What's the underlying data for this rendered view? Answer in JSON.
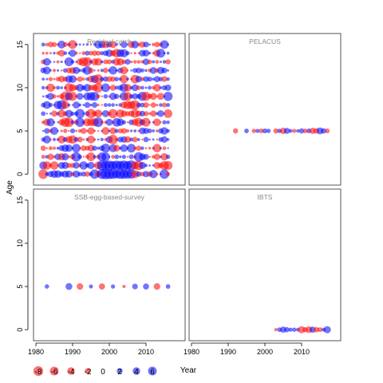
{
  "chart_data": {
    "type": "scatter",
    "subtype": "bubble-residuals",
    "xlabel": "Year",
    "ylabel": "Age",
    "xlim": [
      1980,
      2020
    ],
    "ylim": [
      -1,
      16
    ],
    "x_ticks": [
      "1980",
      "1990",
      "2000",
      "2010"
    ],
    "y_ticks": [
      "0",
      "5",
      "10",
      "15"
    ],
    "colors": {
      "positive": "#0000ff",
      "negative": "#ff0000",
      "panel_border": "#555555",
      "title": "#888888"
    },
    "panels": [
      {
        "title": "Residual catch",
        "x_range": [
          1982,
          2016
        ],
        "ages": [
          0,
          15
        ],
        "note": "dense grid of residuals, one bubble per year and age"
      },
      {
        "title": "PELACUS",
        "points": [
          {
            "x": 1992,
            "y": 5,
            "r": -1.2
          },
          {
            "x": 1995,
            "y": 5,
            "r": 0.8
          },
          {
            "x": 1997,
            "y": 5,
            "r": -0.6
          },
          {
            "x": 1998,
            "y": 5,
            "r": 0.5
          },
          {
            "x": 1999,
            "y": 5,
            "r": -0.9
          },
          {
            "x": 2000,
            "y": 5,
            "r": 1.0
          },
          {
            "x": 2001,
            "y": 5,
            "r": 0.6
          },
          {
            "x": 2003,
            "y": 5,
            "r": -1.1
          },
          {
            "x": 2004,
            "y": 5,
            "r": 0.7
          },
          {
            "x": 2005,
            "y": 5,
            "r": -2.2
          },
          {
            "x": 2006,
            "y": 5,
            "r": 1.8
          },
          {
            "x": 2007,
            "y": 5,
            "r": 0.4
          },
          {
            "x": 2008,
            "y": 5,
            "r": -0.5
          },
          {
            "x": 2009,
            "y": 5,
            "r": 0.3
          },
          {
            "x": 2010,
            "y": 5,
            "r": 1.2
          },
          {
            "x": 2011,
            "y": 5,
            "r": -0.8
          },
          {
            "x": 2012,
            "y": 5,
            "r": 0.9
          },
          {
            "x": 2013,
            "y": 5,
            "r": -2.0
          },
          {
            "x": 2014,
            "y": 5,
            "r": -1.5
          },
          {
            "x": 2015,
            "y": 5,
            "r": 2.6
          },
          {
            "x": 2016,
            "y": 5,
            "r": 1.4
          },
          {
            "x": 2017,
            "y": 5,
            "r": -0.9
          }
        ]
      },
      {
        "title": "SSB-egg-based-survey",
        "points": [
          {
            "x": 1983,
            "y": 5,
            "r": 0.7
          },
          {
            "x": 1989,
            "y": 5,
            "r": 2.6
          },
          {
            "x": 1992,
            "y": 5,
            "r": -2.3
          },
          {
            "x": 1995,
            "y": 5,
            "r": 0.5
          },
          {
            "x": 1998,
            "y": 5,
            "r": -2.0
          },
          {
            "x": 2001,
            "y": 5,
            "r": 0.6
          },
          {
            "x": 2004,
            "y": 5,
            "r": -0.2
          },
          {
            "x": 2007,
            "y": 5,
            "r": 1.6
          },
          {
            "x": 2010,
            "y": 5,
            "r": 1.9
          },
          {
            "x": 2013,
            "y": 5,
            "r": -2.4
          },
          {
            "x": 2016,
            "y": 5,
            "r": 0.8
          }
        ]
      },
      {
        "title": "IBTS",
        "points": [
          {
            "x": 2003,
            "y": 0,
            "r": -0.2
          },
          {
            "x": 2004,
            "y": 0,
            "r": 0.8
          },
          {
            "x": 2005,
            "y": 0,
            "r": 2.0
          },
          {
            "x": 2006,
            "y": 0,
            "r": 1.2
          },
          {
            "x": 2007,
            "y": 0,
            "r": 0.5
          },
          {
            "x": 2008,
            "y": 0,
            "r": 0.6
          },
          {
            "x": 2009,
            "y": 0,
            "r": 0.4
          },
          {
            "x": 2010,
            "y": 0,
            "r": -3.0
          },
          {
            "x": 2011,
            "y": 0,
            "r": -1.2
          },
          {
            "x": 2012,
            "y": 0,
            "r": -2.4
          },
          {
            "x": 2013,
            "y": 0,
            "r": 2.0
          },
          {
            "x": 2014,
            "y": 0,
            "r": -1.3
          },
          {
            "x": 2015,
            "y": 0,
            "r": -0.9
          },
          {
            "x": 2016,
            "y": 0,
            "r": 0.5
          },
          {
            "x": 2017,
            "y": 0,
            "r": 3.0
          }
        ]
      }
    ],
    "legend": {
      "placement": "bottom-left",
      "entries": [
        "-8",
        "-6",
        "-4",
        "-2",
        "0",
        "2",
        "4",
        "6"
      ],
      "values": [
        -8,
        -6,
        -4,
        -2,
        0,
        2,
        4,
        6
      ]
    }
  }
}
